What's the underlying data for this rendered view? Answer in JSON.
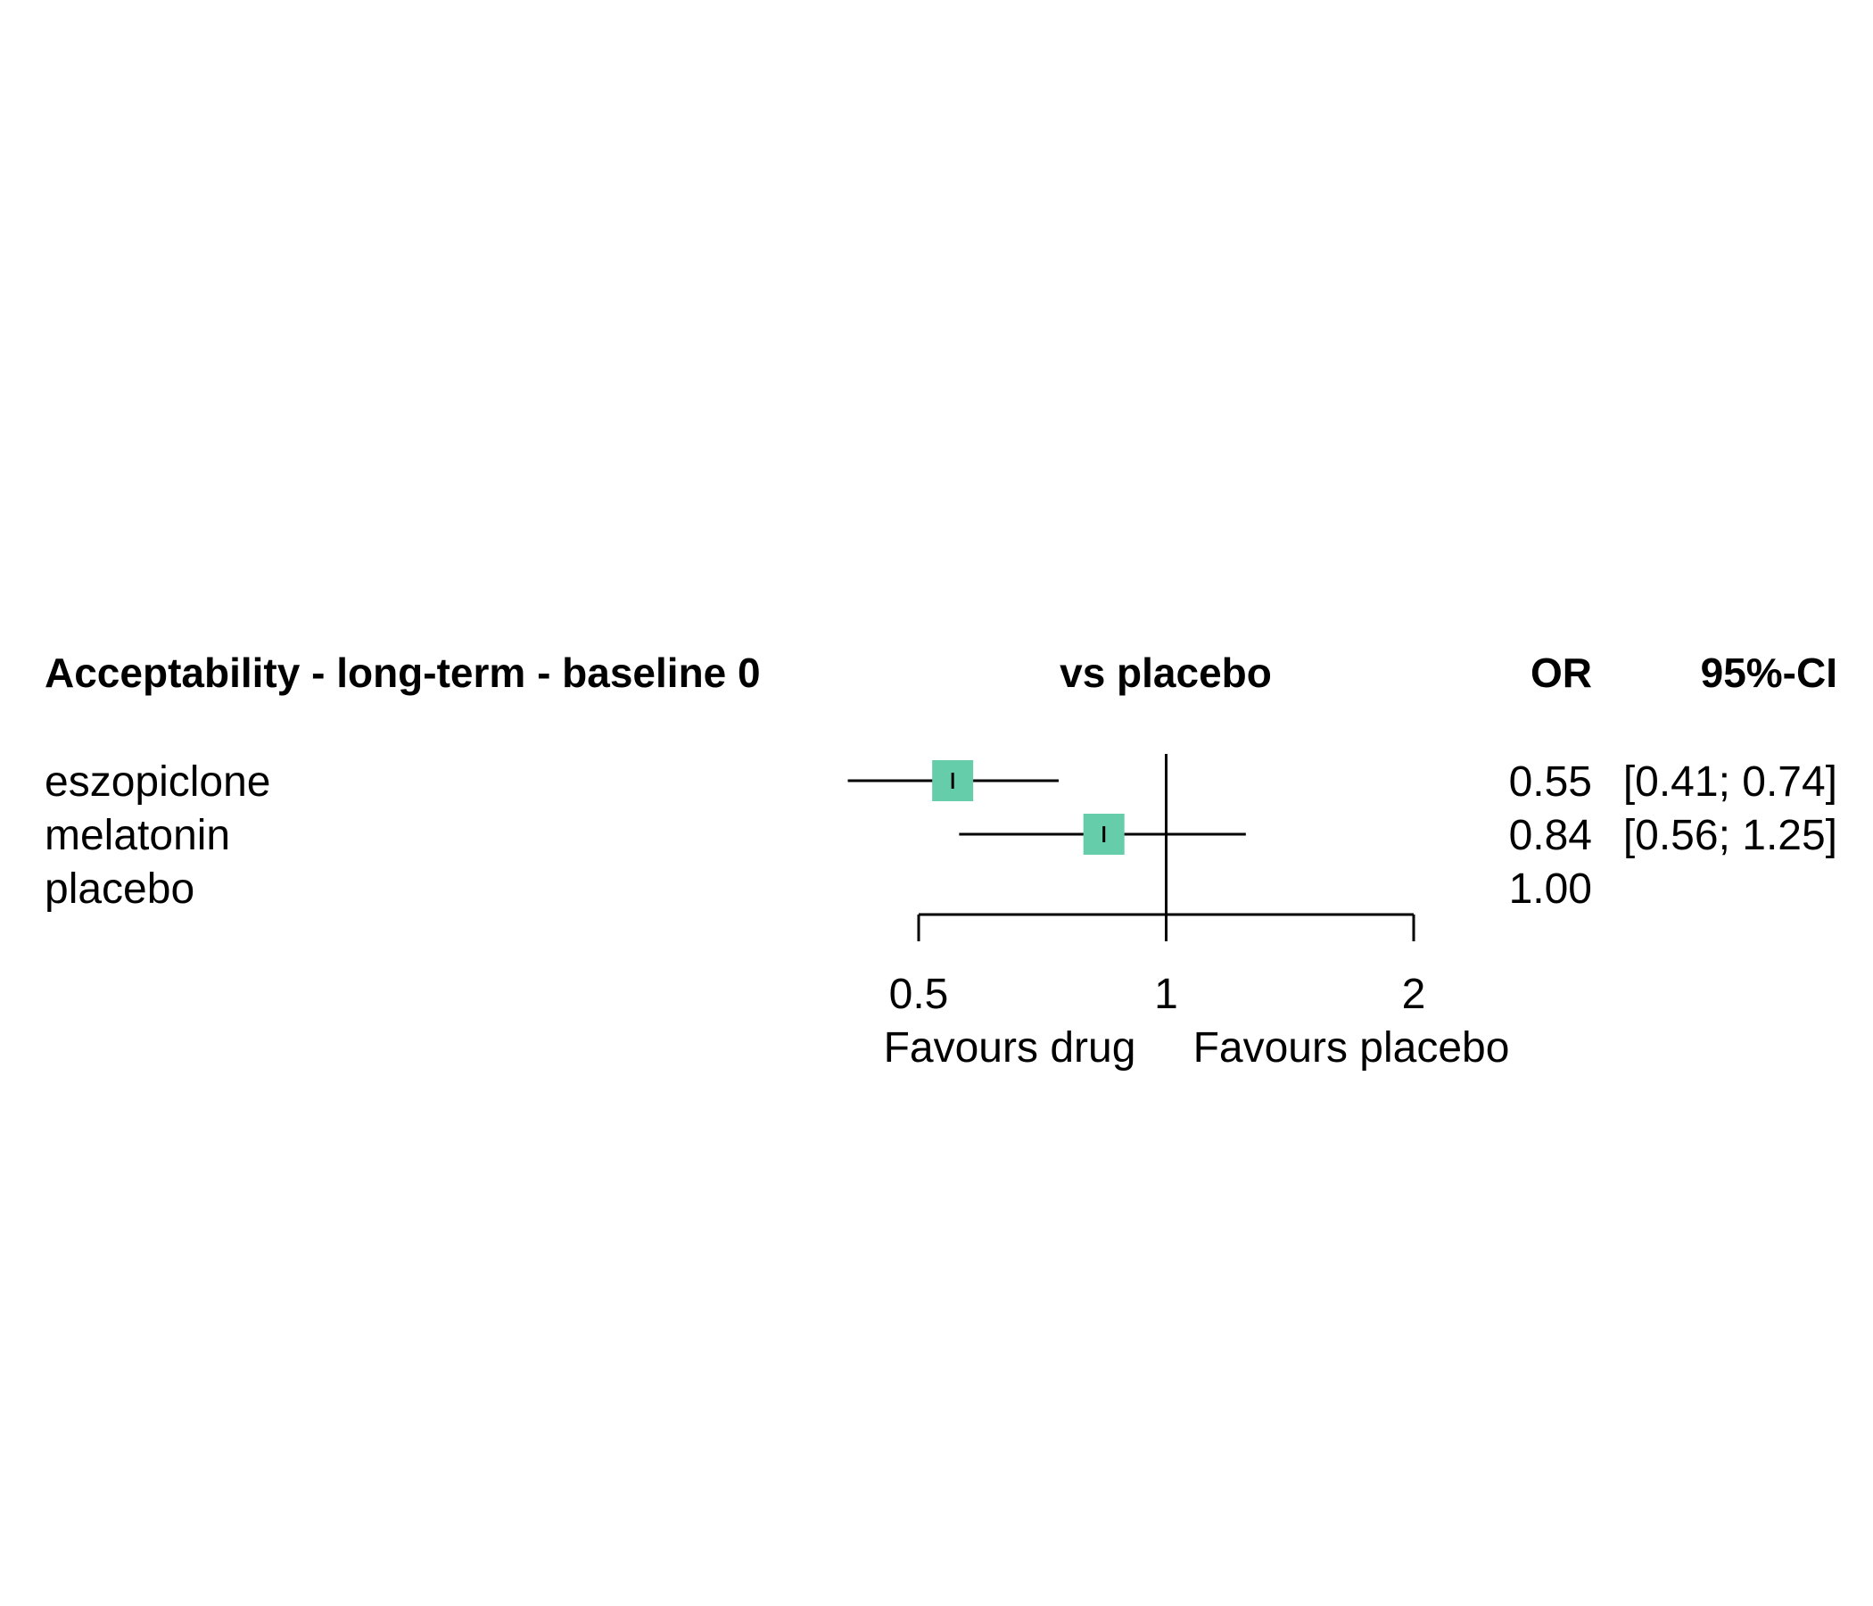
{
  "chart_data": {
    "type": "forest",
    "title": "Acceptability - long-term - baseline 0",
    "comparison_header": "vs placebo",
    "effect_header": "OR",
    "ci_header": "95%-CI",
    "scale": "log",
    "reference_value": 1,
    "xlim": [
      0.5,
      2
    ],
    "ticks": [
      {
        "value": 0.5,
        "label": "0.5"
      },
      {
        "value": 1,
        "label": "1"
      },
      {
        "value": 2,
        "label": "2"
      }
    ],
    "favours_left": "Favours drug",
    "favours_right": "Favours placebo",
    "box_color": "#66CDAA",
    "rows": [
      {
        "label": "eszopiclone",
        "or": 0.55,
        "lower": 0.41,
        "upper": 0.74,
        "or_text": "0.55",
        "ci_text": "[0.41; 0.74]"
      },
      {
        "label": "melatonin",
        "or": 0.84,
        "lower": 0.56,
        "upper": 1.25,
        "or_text": "0.84",
        "ci_text": "[0.56; 1.25]"
      },
      {
        "label": "placebo",
        "or": 1.0,
        "lower": null,
        "upper": null,
        "or_text": "1.00",
        "ci_text": ""
      }
    ]
  }
}
